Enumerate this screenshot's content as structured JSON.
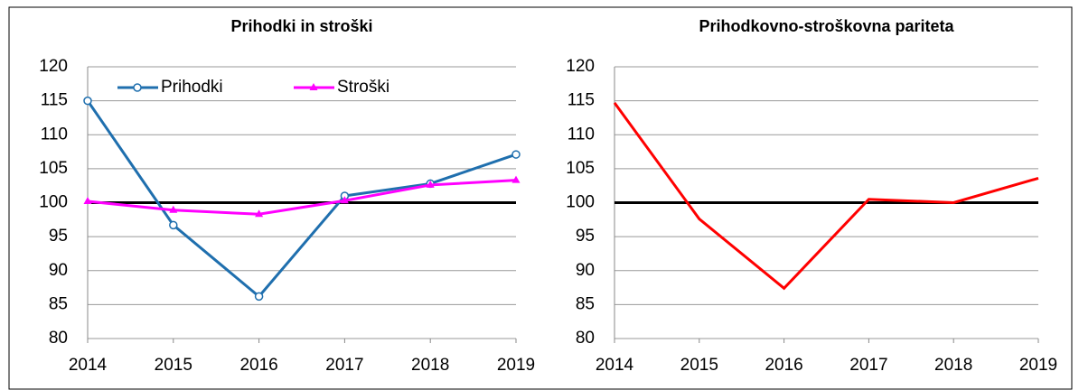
{
  "chart_data": [
    {
      "type": "line",
      "title": "Prihodki in stroški",
      "x": [
        2014,
        2015,
        2016,
        2017,
        2018,
        2019
      ],
      "series": [
        {
          "name": "Prihodki",
          "color": "#1f6fae",
          "marker": "circle",
          "values": [
            115,
            96.7,
            86.2,
            101,
            102.8,
            107.1
          ]
        },
        {
          "name": "Stroški",
          "color": "#ff00ff",
          "marker": "triangle",
          "values": [
            100.2,
            98.9,
            98.3,
            100.3,
            102.6,
            103.3
          ]
        }
      ],
      "xlim": [
        2014,
        2019
      ],
      "xticks": [
        2014,
        2015,
        2016,
        2017,
        2018,
        2019
      ],
      "ylim": [
        80,
        120
      ],
      "yticks": [
        80,
        85,
        90,
        95,
        100,
        105,
        110,
        115,
        120
      ],
      "reference_line": 100,
      "grid": true,
      "legend": "top"
    },
    {
      "type": "line",
      "title": "Prihodkovno-stroškovna pariteta",
      "x": [
        2014,
        2015,
        2016,
        2017,
        2018,
        2019
      ],
      "values": [
        114.7,
        97.6,
        87.4,
        100.5,
        100,
        103.6
      ],
      "color": "#ff0000",
      "xlim": [
        2014,
        2019
      ],
      "xticks": [
        2014,
        2015,
        2016,
        2017,
        2018,
        2019
      ],
      "ylim": [
        80,
        120
      ],
      "yticks": [
        80,
        85,
        90,
        95,
        100,
        105,
        110,
        115,
        120
      ],
      "reference_line": 100,
      "grid": true
    }
  ]
}
